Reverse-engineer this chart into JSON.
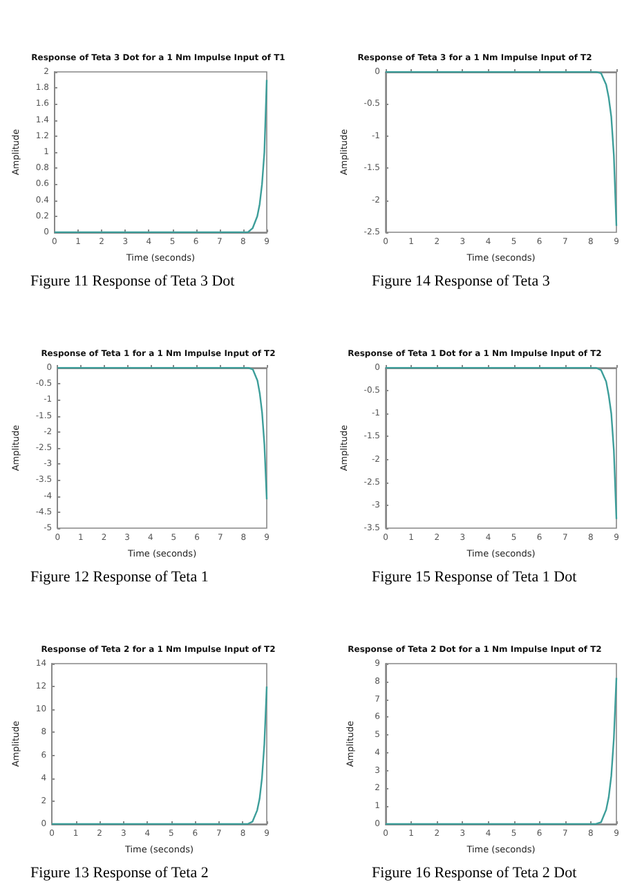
{
  "chart_data": [
    {
      "type": "line",
      "title": "Response of Teta 3 Dot for a 1 Nm Impulse Input of T1",
      "xlabel": "Time (seconds)",
      "ylabel": "Amplitude",
      "annotations": [
        "Figure 11 Response of Teta 3 Dot"
      ],
      "x": [
        0,
        1,
        2,
        3,
        4,
        5,
        6,
        7,
        8,
        8.2,
        8.4,
        8.6,
        8.7,
        8.8,
        8.9,
        9
      ],
      "xlim": [
        0,
        9
      ],
      "xticks": [
        0,
        1,
        2,
        3,
        4,
        5,
        6,
        7,
        8,
        9
      ],
      "ylim": [
        0,
        2
      ],
      "yticks": [
        0,
        0.2,
        0.4,
        0.6,
        0.8,
        1,
        1.2,
        1.4,
        1.6,
        1.8,
        2
      ],
      "grid": false,
      "marker": "none",
      "series": [
        {
          "color": "#3d9e9a",
          "values": [
            0,
            0,
            0,
            0,
            0,
            0,
            0,
            0,
            0,
            0,
            0.05,
            0.2,
            0.35,
            0.6,
            1.0,
            1.9
          ]
        }
      ]
    },
    {
      "type": "line",
      "title": "Response of Teta 3 for a 1 Nm Impulse Input of T2",
      "xlabel": "Time (seconds)",
      "ylabel": "Amplitude",
      "annotations": [
        "Figure 14 Response of Teta 3"
      ],
      "x": [
        0,
        1,
        2,
        3,
        4,
        5,
        6,
        7,
        8,
        8.2,
        8.4,
        8.6,
        8.7,
        8.8,
        8.9,
        9
      ],
      "xlim": [
        0,
        9
      ],
      "xticks": [
        0,
        1,
        2,
        3,
        4,
        5,
        6,
        7,
        8,
        9
      ],
      "ylim": [
        -2.5,
        0
      ],
      "yticks": [
        -2.5,
        -2,
        -1.5,
        -1,
        -0.5,
        0
      ],
      "grid": false,
      "marker": "none",
      "series": [
        {
          "color": "#3d9e9a",
          "values": [
            0,
            0,
            0,
            0,
            0,
            0,
            0,
            0,
            0,
            0,
            -0.02,
            -0.2,
            -0.4,
            -0.7,
            -1.3,
            -2.4
          ]
        }
      ]
    },
    {
      "type": "line",
      "title": "Response of Teta 1 for a 1 Nm Impulse Input of T2",
      "xlabel": "Time (seconds)",
      "ylabel": "Amplitude",
      "annotations": [
        "Figure 12 Response of Teta 1"
      ],
      "x": [
        0,
        1,
        2,
        3,
        4,
        5,
        6,
        7,
        8,
        8.2,
        8.4,
        8.6,
        8.7,
        8.8,
        8.9,
        9
      ],
      "xlim": [
        0,
        9
      ],
      "xticks": [
        0,
        1,
        2,
        3,
        4,
        5,
        6,
        7,
        8,
        9
      ],
      "ylim": [
        -5,
        0
      ],
      "yticks": [
        -5,
        -4.5,
        -4,
        -3.5,
        -3,
        -2.5,
        -2,
        -1.5,
        -1,
        -0.5,
        0
      ],
      "grid": false,
      "marker": "none",
      "series": [
        {
          "color": "#3d9e9a",
          "values": [
            0,
            0,
            0,
            0,
            0,
            0,
            0,
            0,
            0,
            0,
            -0.05,
            -0.4,
            -0.8,
            -1.4,
            -2.4,
            -4.1
          ]
        }
      ]
    },
    {
      "type": "line",
      "title": "Response of Teta 1 Dot for a 1 Nm Impulse Input of T2",
      "xlabel": "Time (seconds)",
      "ylabel": "Amplitude",
      "annotations": [
        "Figure 15 Response of Teta 1 Dot"
      ],
      "x": [
        0,
        1,
        2,
        3,
        4,
        5,
        6,
        7,
        8,
        8.2,
        8.4,
        8.6,
        8.7,
        8.8,
        8.9,
        9
      ],
      "xlim": [
        0,
        9
      ],
      "xticks": [
        0,
        1,
        2,
        3,
        4,
        5,
        6,
        7,
        8,
        9
      ],
      "ylim": [
        -3.5,
        0
      ],
      "yticks": [
        -3.5,
        -3,
        -2.5,
        -2,
        -1.5,
        -1,
        -0.5,
        0
      ],
      "grid": false,
      "marker": "none",
      "series": [
        {
          "color": "#3d9e9a",
          "values": [
            0,
            0,
            0,
            0,
            0,
            0,
            0,
            0,
            0,
            0,
            -0.05,
            -0.3,
            -0.6,
            -1.0,
            -1.8,
            -3.3
          ]
        }
      ]
    },
    {
      "type": "line",
      "title": "Response of Teta 2 for a 1 Nm Impulse Input of T2",
      "xlabel": "Time (seconds)",
      "ylabel": "Amplitude",
      "annotations": [
        "Figure 13 Response of Teta 2"
      ],
      "x": [
        0,
        1,
        2,
        3,
        4,
        5,
        6,
        7,
        8,
        8.2,
        8.4,
        8.6,
        8.7,
        8.8,
        8.9,
        9
      ],
      "xlim": [
        0,
        9
      ],
      "xticks": [
        0,
        1,
        2,
        3,
        4,
        5,
        6,
        7,
        8,
        9
      ],
      "ylim": [
        0,
        14
      ],
      "yticks": [
        0,
        2,
        4,
        6,
        8,
        10,
        12,
        14
      ],
      "grid": false,
      "marker": "none",
      "series": [
        {
          "color": "#3d9e9a",
          "values": [
            0,
            0,
            0,
            0,
            0,
            0,
            0,
            0,
            0,
            0,
            0.2,
            1.2,
            2.2,
            4,
            7,
            12
          ]
        }
      ]
    },
    {
      "type": "line",
      "title": "Response of Teta 2 Dot for a 1 Nm Impulse Input of T2",
      "xlabel": "Time (seconds)",
      "ylabel": "Amplitude",
      "annotations": [
        "Figure 16 Response of Teta 2 Dot"
      ],
      "x": [
        0,
        1,
        2,
        3,
        4,
        5,
        6,
        7,
        8,
        8.2,
        8.4,
        8.6,
        8.7,
        8.8,
        8.9,
        9
      ],
      "xlim": [
        0,
        9
      ],
      "xticks": [
        0,
        1,
        2,
        3,
        4,
        5,
        6,
        7,
        8,
        9
      ],
      "ylim": [
        0,
        9
      ],
      "yticks": [
        0,
        1,
        2,
        3,
        4,
        5,
        6,
        7,
        8,
        9
      ],
      "grid": false,
      "marker": "none",
      "series": [
        {
          "color": "#3d9e9a",
          "values": [
            0,
            0,
            0,
            0,
            0,
            0,
            0,
            0,
            0,
            0,
            0.1,
            0.8,
            1.5,
            2.7,
            4.8,
            8.2
          ]
        }
      ]
    }
  ]
}
